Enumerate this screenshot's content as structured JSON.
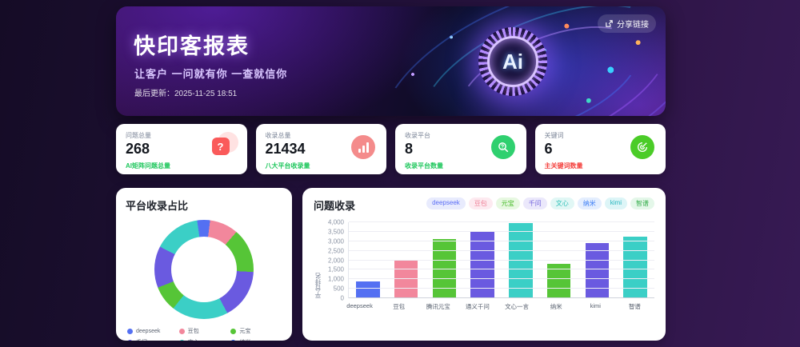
{
  "banner": {
    "title": "快印客报表",
    "subtitle": "让客户 一问就有你 一查就信你",
    "updated": "最后更新：2025-11-25 18:51",
    "share_label": "分享链接",
    "ai_badge": "Ai"
  },
  "stats": [
    {
      "label": "问题总量",
      "value": "268",
      "sub": "AI矩阵问题总量",
      "sub_status": "positive",
      "icon": "question-bubble"
    },
    {
      "label": "收录总量",
      "value": "21434",
      "sub": "八大平台收录量",
      "sub_status": "positive",
      "icon": "bar-chart"
    },
    {
      "label": "收录平台",
      "value": "8",
      "sub": "收录平台数量",
      "sub_status": "positive",
      "icon": "search-check"
    },
    {
      "label": "关键词",
      "value": "6",
      "sub": "主关键词数量",
      "sub_status": "negative",
      "icon": "target"
    }
  ],
  "pie_panel": {
    "title": "平台收录占比"
  },
  "bar_panel": {
    "title": "问题收录",
    "y_axis_title": "平台排名",
    "yticks": [
      "0",
      "500",
      "1,000",
      "1,500",
      "2,000",
      "2,500",
      "3,000",
      "3,500",
      "4,000"
    ]
  },
  "platforms": [
    {
      "name": "deepseek",
      "bar_label": "deepseek",
      "color": "#5470f2",
      "legend_color": "#5470f2",
      "pill_bg": "#e8ebfd",
      "pill_fg": "#5b6ef5"
    },
    {
      "name": "豆包",
      "bar_label": "豆包",
      "color": "#f2879c",
      "legend_color": "#f2879c",
      "pill_bg": "#fdeaf0",
      "pill_fg": "#ee7d95"
    },
    {
      "name": "元宝",
      "bar_label": "腾讯元宝",
      "color": "#56c537",
      "legend_color": "#56c537",
      "pill_bg": "#e7f8e1",
      "pill_fg": "#47bb2a"
    },
    {
      "name": "千问",
      "bar_label": "通义千问",
      "color": "#6a5ae0",
      "legend_color": "#6a5ae0",
      "pill_bg": "#ebe8fb",
      "pill_fg": "#7263dd"
    },
    {
      "name": "文心",
      "bar_label": "文心一言",
      "color": "#3bcfc6",
      "legend_color": "#3bcfc6",
      "pill_bg": "#e1f7f5",
      "pill_fg": "#2bbfb6"
    },
    {
      "name": "纳米",
      "bar_label": "纳米",
      "color": "#56c537",
      "legend_color": "#2b6bf3",
      "pill_bg": "#e4eefe",
      "pill_fg": "#3c7ef5"
    },
    {
      "name": "kimi",
      "bar_label": "kimi",
      "color": "#6a5ae0",
      "legend_color": "#2ec7c9",
      "pill_bg": "#ddf5f7",
      "pill_fg": "#27b6bf"
    },
    {
      "name": "智谱",
      "bar_label": "智谱",
      "color": "#3bcfc6",
      "legend_color": "#3cb54a",
      "pill_bg": "#e4f7e9",
      "pill_fg": "#35ad4b"
    }
  ],
  "chart_data": [
    {
      "type": "pie",
      "title": "平台收录占比",
      "labels": [
        "deepseek",
        "豆包",
        "元宝",
        "千问",
        "文心",
        "纳米",
        "kimi",
        "智谱"
      ],
      "values": [
        900,
        2000,
        3100,
        3500,
        3950,
        1800,
        2900,
        3250
      ],
      "colors": [
        "#5470f2",
        "#f2879c",
        "#56c537",
        "#6a5ae0",
        "#3bcfc6",
        "#56c537",
        "#6a5ae0",
        "#3bcfc6"
      ],
      "donut": true,
      "legend_position": "bottom"
    },
    {
      "type": "bar",
      "title": "问题收录",
      "categories": [
        "deepseek",
        "豆包",
        "腾讯元宝",
        "通义千问",
        "文心一言",
        "纳米",
        "kimi",
        "智谱"
      ],
      "values": [
        900,
        2000,
        3100,
        3500,
        3950,
        1800,
        2900,
        3250
      ],
      "xlabel": "",
      "ylabel": "平台排名",
      "ylim": [
        0,
        4000
      ],
      "ytick_step": 500,
      "grid": true
    }
  ],
  "colors": {
    "positive": "#1fc75d",
    "negative": "#f4403d",
    "accent_purple": "#7b2ff7",
    "card_bg": "#ffffff"
  }
}
